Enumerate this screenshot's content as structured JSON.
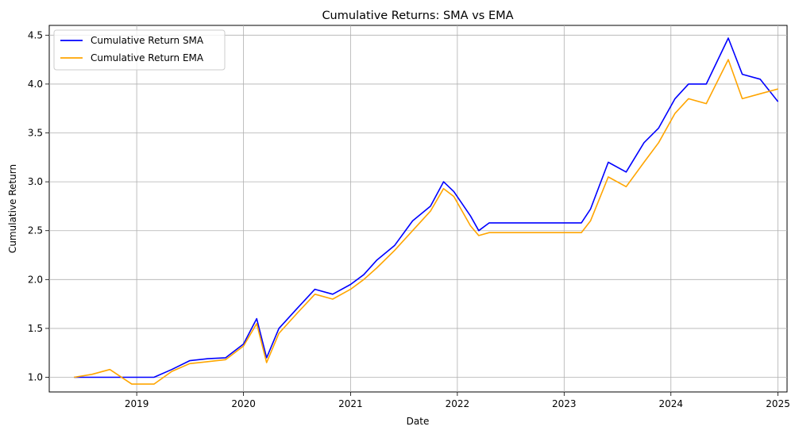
{
  "chart_data": {
    "type": "line",
    "title": "Cumulative Returns: SMA vs EMA",
    "xlabel": "Date",
    "ylabel": "Cumulative Return",
    "xlim": [
      "2018-03-08",
      "2025-02-01"
    ],
    "ylim": [
      0.85,
      4.6
    ],
    "x_ticks": [
      "2019-01-01",
      "2020-01-01",
      "2021-01-01",
      "2022-01-01",
      "2023-01-01",
      "2024-01-01",
      "2025-01-01"
    ],
    "x_tick_labels": [
      "2019",
      "2020",
      "2021",
      "2022",
      "2023",
      "2024",
      "2025"
    ],
    "y_ticks": [
      1.0,
      1.5,
      2.0,
      2.5,
      3.0,
      3.5,
      4.0,
      4.5
    ],
    "y_tick_labels": [
      "1.0",
      "1.5",
      "2.0",
      "2.5",
      "3.0",
      "3.5",
      "4.0",
      "4.5"
    ],
    "grid": true,
    "legend": "upper-left",
    "series": [
      {
        "name": "Cumulative Return SMA",
        "color": "#0000ff",
        "points": [
          [
            "2018-06-01",
            1.0
          ],
          [
            "2018-09-01",
            1.0
          ],
          [
            "2018-12-01",
            1.0
          ],
          [
            "2019-03-01",
            1.0
          ],
          [
            "2019-05-01",
            1.08
          ],
          [
            "2019-07-01",
            1.17
          ],
          [
            "2019-09-01",
            1.19
          ],
          [
            "2019-11-01",
            1.2
          ],
          [
            "2020-01-01",
            1.34
          ],
          [
            "2020-02-15",
            1.6
          ],
          [
            "2020-03-20",
            1.2
          ],
          [
            "2020-05-01",
            1.5
          ],
          [
            "2020-07-01",
            1.7
          ],
          [
            "2020-09-01",
            1.9
          ],
          [
            "2020-11-01",
            1.85
          ],
          [
            "2021-01-01",
            1.95
          ],
          [
            "2021-02-15",
            2.05
          ],
          [
            "2021-04-01",
            2.2
          ],
          [
            "2021-06-01",
            2.35
          ],
          [
            "2021-08-01",
            2.6
          ],
          [
            "2021-10-01",
            2.75
          ],
          [
            "2021-11-15",
            3.0
          ],
          [
            "2021-12-20",
            2.9
          ],
          [
            "2022-02-15",
            2.65
          ],
          [
            "2022-03-15",
            2.5
          ],
          [
            "2022-04-20",
            2.58
          ],
          [
            "2022-07-01",
            2.58
          ],
          [
            "2022-10-01",
            2.58
          ],
          [
            "2023-03-01",
            2.58
          ],
          [
            "2023-04-01",
            2.72
          ],
          [
            "2023-06-01",
            3.2
          ],
          [
            "2023-08-01",
            3.1
          ],
          [
            "2023-10-01",
            3.4
          ],
          [
            "2023-11-20",
            3.55
          ],
          [
            "2024-01-15",
            3.85
          ],
          [
            "2024-03-01",
            4.0
          ],
          [
            "2024-05-01",
            4.0
          ],
          [
            "2024-07-15",
            4.47
          ],
          [
            "2024-09-01",
            4.1
          ],
          [
            "2024-11-01",
            4.05
          ],
          [
            "2025-01-01",
            3.82
          ]
        ]
      },
      {
        "name": "Cumulative Return EMA",
        "color": "#ffa500",
        "points": [
          [
            "2018-06-01",
            1.0
          ],
          [
            "2018-08-01",
            1.03
          ],
          [
            "2018-10-01",
            1.08
          ],
          [
            "2018-12-15",
            0.93
          ],
          [
            "2019-03-01",
            0.93
          ],
          [
            "2019-05-01",
            1.06
          ],
          [
            "2019-07-01",
            1.14
          ],
          [
            "2019-09-01",
            1.16
          ],
          [
            "2019-11-01",
            1.18
          ],
          [
            "2020-01-01",
            1.32
          ],
          [
            "2020-02-15",
            1.55
          ],
          [
            "2020-03-20",
            1.15
          ],
          [
            "2020-05-01",
            1.45
          ],
          [
            "2020-07-01",
            1.65
          ],
          [
            "2020-09-01",
            1.85
          ],
          [
            "2020-11-01",
            1.8
          ],
          [
            "2021-01-01",
            1.9
          ],
          [
            "2021-02-15",
            2.0
          ],
          [
            "2021-04-01",
            2.12
          ],
          [
            "2021-06-01",
            2.3
          ],
          [
            "2021-08-01",
            2.5
          ],
          [
            "2021-10-01",
            2.7
          ],
          [
            "2021-11-15",
            2.93
          ],
          [
            "2021-12-20",
            2.85
          ],
          [
            "2022-02-15",
            2.55
          ],
          [
            "2022-03-15",
            2.45
          ],
          [
            "2022-04-20",
            2.48
          ],
          [
            "2022-07-01",
            2.48
          ],
          [
            "2022-10-01",
            2.48
          ],
          [
            "2023-03-01",
            2.48
          ],
          [
            "2023-04-01",
            2.6
          ],
          [
            "2023-06-01",
            3.05
          ],
          [
            "2023-08-01",
            2.95
          ],
          [
            "2023-10-01",
            3.2
          ],
          [
            "2023-11-20",
            3.4
          ],
          [
            "2024-01-15",
            3.7
          ],
          [
            "2024-03-01",
            3.85
          ],
          [
            "2024-05-01",
            3.8
          ],
          [
            "2024-07-15",
            4.25
          ],
          [
            "2024-09-01",
            3.85
          ],
          [
            "2024-11-01",
            3.9
          ],
          [
            "2025-01-01",
            3.95
          ]
        ]
      }
    ]
  }
}
